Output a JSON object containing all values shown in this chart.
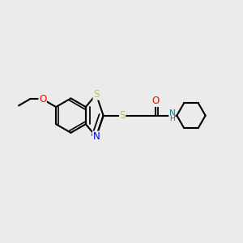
{
  "bg_color": "#ebebeb",
  "line_color": "#000000",
  "bond_width": 1.5,
  "figsize": [
    3.0,
    3.0
  ],
  "dpi": 100,
  "atom_colors": {
    "S": "#cccc00",
    "N": "#0000ff",
    "O": "#ff0000",
    "NH": "#008080",
    "C": "#000000"
  }
}
